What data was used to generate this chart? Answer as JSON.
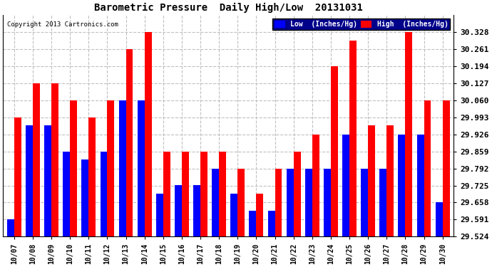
{
  "title": "Barometric Pressure  Daily High/Low  20131031",
  "copyright": "Copyright 2013 Cartronics.com",
  "legend_low": "Low  (Inches/Hg)",
  "legend_high": "High  (Inches/Hg)",
  "categories": [
    "10/07",
    "10/08",
    "10/09",
    "10/10",
    "10/11",
    "10/12",
    "10/13",
    "10/14",
    "10/15",
    "10/16",
    "10/17",
    "10/18",
    "10/19",
    "10/20",
    "10/21",
    "10/22",
    "10/23",
    "10/24",
    "10/25",
    "10/26",
    "10/27",
    "10/28",
    "10/29",
    "10/30"
  ],
  "low_values": [
    29.591,
    29.96,
    29.96,
    29.859,
    29.826,
    29.859,
    30.06,
    30.06,
    29.692,
    29.726,
    29.726,
    29.792,
    29.692,
    29.625,
    29.625,
    29.792,
    29.792,
    29.792,
    29.926,
    29.792,
    29.792,
    29.926,
    29.926,
    29.659
  ],
  "high_values": [
    29.993,
    30.127,
    30.127,
    30.06,
    29.993,
    30.06,
    30.261,
    30.328,
    29.859,
    29.859,
    29.859,
    29.859,
    29.792,
    29.692,
    29.792,
    29.859,
    29.926,
    30.194,
    30.295,
    29.96,
    29.96,
    30.328,
    30.06,
    30.06
  ],
  "ylim_min": 29.524,
  "ylim_max": 30.395,
  "yticks": [
    29.524,
    29.591,
    29.658,
    29.725,
    29.792,
    29.859,
    29.926,
    29.993,
    30.06,
    30.127,
    30.194,
    30.261,
    30.328
  ],
  "low_color": "#0000ff",
  "high_color": "#ff0000",
  "bg_color": "#ffffff",
  "grid_color": "#c0c0c0",
  "bar_width": 0.38
}
